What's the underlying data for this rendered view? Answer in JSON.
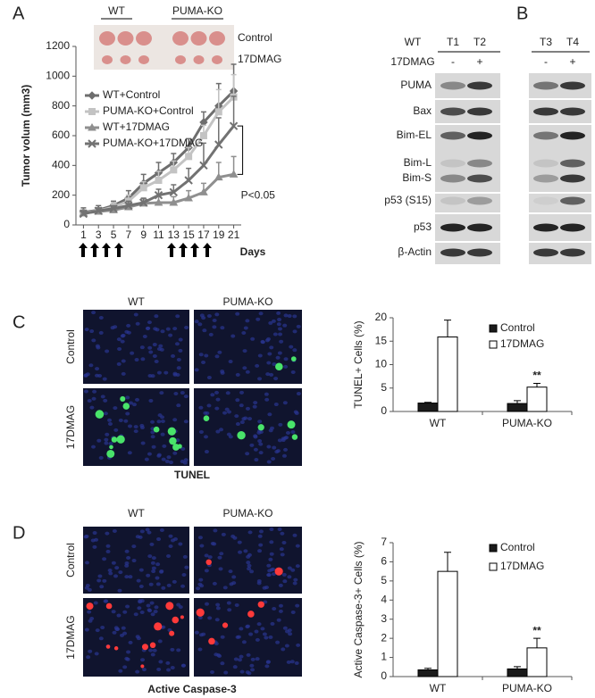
{
  "panel_labels": [
    "A",
    "B",
    "C",
    "D"
  ],
  "tumor_photo": {
    "groups": [
      "WT",
      "PUMA-KO"
    ],
    "rows": [
      "Control",
      "17DMAG"
    ]
  },
  "chart_data": [
    {
      "type": "line",
      "ylabel": "Tumor volum (mm3)",
      "xlabel": "Days",
      "x": [
        1,
        3,
        5,
        7,
        9,
        11,
        13,
        15,
        17,
        19,
        21
      ],
      "xlim": [
        0,
        22
      ],
      "xticks": [
        1,
        3,
        5,
        7,
        9,
        11,
        13,
        15,
        17,
        19,
        21
      ],
      "ylim": [
        0,
        1200
      ],
      "yticks": [
        0,
        200,
        400,
        600,
        800,
        1000,
        1200
      ],
      "series": [
        {
          "name": "WT+Control",
          "color": "#6e6e6e",
          "marker": "diamond",
          "values": [
            85,
            100,
            130,
            180,
            280,
            350,
            420,
            520,
            690,
            800,
            900
          ],
          "errors": [
            30,
            30,
            30,
            50,
            60,
            70,
            60,
            60,
            70,
            150,
            180
          ]
        },
        {
          "name": "PUMA-KO+Control",
          "color": "#c3c3c3",
          "marker": "square",
          "values": [
            80,
            95,
            120,
            160,
            250,
            300,
            370,
            460,
            600,
            760,
            860
          ],
          "errors": [
            20,
            20,
            30,
            40,
            40,
            60,
            60,
            60,
            70,
            150,
            150
          ]
        },
        {
          "name": "WT+17DMAG",
          "color": "#8f8f8f",
          "marker": "triangle",
          "values": [
            80,
            90,
            100,
            120,
            145,
            150,
            150,
            180,
            220,
            320,
            340
          ],
          "errors": [
            20,
            20,
            20,
            30,
            30,
            40,
            40,
            50,
            60,
            100,
            120
          ]
        },
        {
          "name": "PUMA-KO+17DMAG",
          "color": "#727272",
          "marker": "x",
          "values": [
            75,
            95,
            110,
            130,
            150,
            200,
            220,
            300,
            400,
            540,
            665
          ],
          "errors": [
            20,
            20,
            20,
            30,
            30,
            40,
            50,
            80,
            150,
            180,
            200
          ]
        }
      ],
      "annotations": [
        "P<0.05"
      ]
    },
    {
      "type": "bar",
      "ylabel": "TUNEL+ Cells (%)",
      "categories": [
        "WT",
        "PUMA-KO"
      ],
      "ylim": [
        0,
        20
      ],
      "yticks": [
        0,
        5,
        10,
        15,
        20
      ],
      "series": [
        {
          "name": "Control",
          "color": "#1a1a1a",
          "values": [
            1.8,
            1.7
          ],
          "errors": [
            0.15,
            0.6
          ]
        },
        {
          "name": "17DMAG",
          "color": "#ffffff",
          "values": [
            15.9,
            5.2
          ],
          "errors": [
            3.6,
            0.8
          ]
        }
      ],
      "annotations": [
        {
          "text": "**",
          "category": "PUMA-KO",
          "series": "17DMAG"
        }
      ]
    },
    {
      "type": "bar",
      "ylabel": "Active Caspase-3+ Cells (%)",
      "categories": [
        "WT",
        "PUMA-KO"
      ],
      "ylim": [
        0,
        7
      ],
      "yticks": [
        0,
        1,
        2,
        3,
        4,
        5,
        6,
        7
      ],
      "series": [
        {
          "name": "Control",
          "color": "#1a1a1a",
          "values": [
            0.35,
            0.4
          ],
          "errors": [
            0.08,
            0.12
          ]
        },
        {
          "name": "17DMAG",
          "color": "#ffffff",
          "values": [
            5.5,
            1.5
          ],
          "errors": [
            1.0,
            0.5
          ]
        }
      ],
      "annotations": [
        {
          "text": "**",
          "category": "PUMA-KO",
          "series": "17DMAG"
        }
      ]
    }
  ],
  "blot": {
    "group": "WT",
    "lanes": [
      "T1",
      "T2",
      "T3",
      "T4"
    ],
    "treatment_label": "17DMAG",
    "treatment": [
      "-",
      "+",
      "-",
      "+"
    ],
    "rows": [
      "PUMA",
      "Bax",
      "Bim-EL",
      "Bim-L",
      "Bim-S",
      "p53 (S15)",
      "p53",
      "β-Actin"
    ]
  },
  "micrographs": [
    {
      "columns": [
        "WT",
        "PUMA-KO"
      ],
      "rows": [
        "Control",
        "17DMAG"
      ],
      "caption": "TUNEL"
    },
    {
      "columns": [
        "WT",
        "PUMA-KO"
      ],
      "rows": [
        "Control",
        "17DMAG"
      ],
      "caption": "Active Caspase-3"
    }
  ]
}
